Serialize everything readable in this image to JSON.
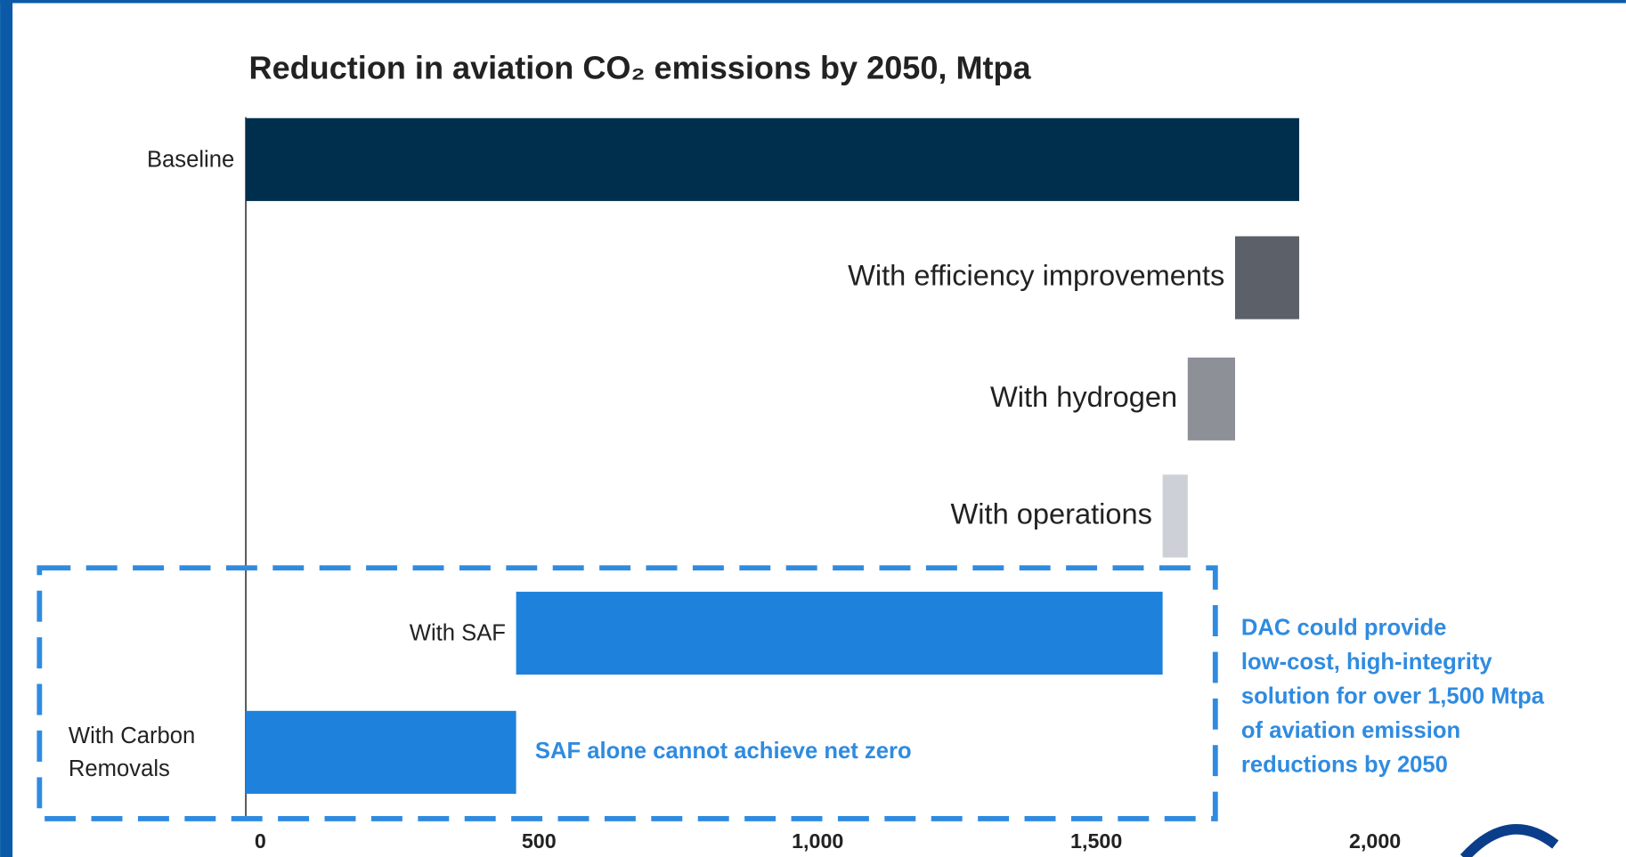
{
  "chart_data": {
    "type": "waterfall",
    "title": "Reduction in aviation CO₂ emissions by 2050, Mtpa",
    "categories": [
      "Baseline",
      "With efficiency improvements",
      "With hydrogen",
      "With operations",
      "With SAF",
      "With Carbon Removals"
    ],
    "values": [
      1890,
      115,
      85,
      45,
      1160,
      485
    ],
    "colors": [
      "#002f4e",
      "#5c6068",
      "#8e9098",
      "#cdd0d6",
      "#1e82dc",
      "#1e82dc"
    ],
    "xlim": [
      0,
      2000
    ],
    "xticks": [
      0,
      500,
      {
        "value": 1000,
        "label": "1,000"
      },
      {
        "value": 1500,
        "label": "1,500"
      },
      {
        "value": 2000,
        "label": "2,000"
      }
    ],
    "annotations": [
      "SAF alone cannot achieve net zero"
    ],
    "callout": [
      "DAC could provide",
      "low-cost, high-integrity",
      "solution for over 1,500 Mtpa",
      "of aviation emission",
      "reductions by 2050"
    ]
  }
}
